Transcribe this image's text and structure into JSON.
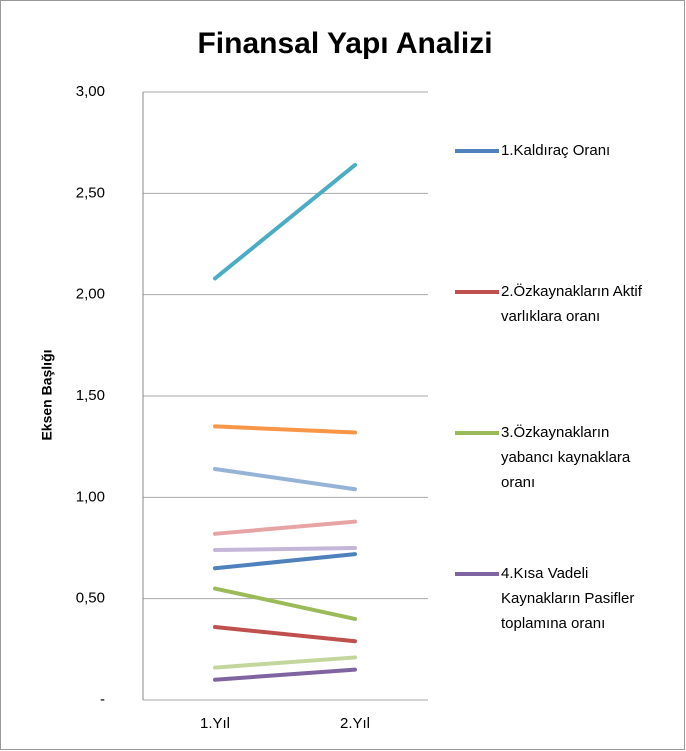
{
  "chart_data": {
    "type": "line",
    "title": "Finansal Yapı Analizi",
    "y_label": "Eksen Başlığı",
    "categories": [
      "1.Yıl",
      "2.Yıl"
    ],
    "ylim": [
      0,
      3
    ],
    "yticks": [
      {
        "value": 0,
        "label": "-"
      },
      {
        "value": 0.5,
        "label": "0,50"
      },
      {
        "value": 1,
        "label": "1,00"
      },
      {
        "value": 1.5,
        "label": "1,50"
      },
      {
        "value": 2,
        "label": "2,00"
      },
      {
        "value": 2.5,
        "label": "2,50"
      },
      {
        "value": 3,
        "label": "3,00"
      }
    ],
    "grid": true,
    "series": [
      {
        "name": "1.Kaldıraç Oranı",
        "color": "#4f81bd",
        "values": [
          0.65,
          0.72
        ]
      },
      {
        "name": "2.Özkaynakların Aktif varlıklara oranı",
        "color": "#c0504d",
        "values": [
          0.36,
          0.29
        ]
      },
      {
        "name": "3.Özkaynakların yabancı kaynaklara oranı",
        "color": "#9bbb59",
        "values": [
          0.55,
          0.4
        ]
      },
      {
        "name": "4.Kısa Vadeli Kaynakların Pasifler toplamına oranı",
        "color": "#8064a2",
        "values": [
          0.1,
          0.15
        ]
      },
      {
        "color": "#4bacc6",
        "values": [
          2.08,
          2.64
        ]
      },
      {
        "color": "#f79646",
        "values": [
          1.35,
          1.32
        ]
      },
      {
        "color": "#95b3d7",
        "values": [
          1.14,
          1.04
        ]
      },
      {
        "color": "#e6a5a4",
        "values": [
          0.82,
          0.88
        ]
      },
      {
        "color": "#c4b6d9",
        "values": [
          0.74,
          0.75
        ]
      },
      {
        "color": "#c3d69b",
        "values": [
          0.16,
          0.21
        ]
      }
    ]
  }
}
